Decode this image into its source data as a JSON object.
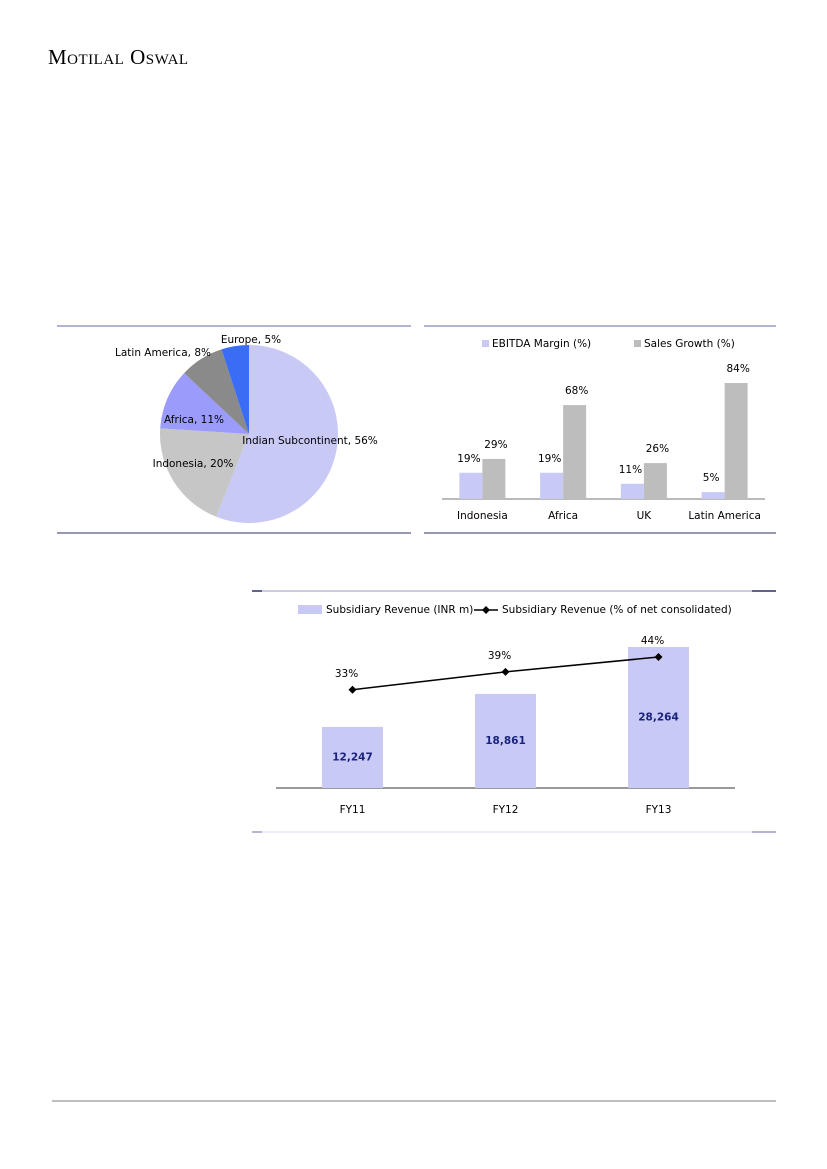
{
  "header": {
    "brand": "Motilal Oswal"
  },
  "chart_data": [
    {
      "type": "pie",
      "categories": [
        "Indian Subcontinent",
        "Indonesia",
        "Africa",
        "Latin America",
        "Europe"
      ],
      "values": [
        56,
        20,
        11,
        8,
        5
      ],
      "value_labels": [
        "56%",
        "20%",
        "11%",
        "8%",
        "5%"
      ],
      "colors": [
        "#c9c9f6",
        "#c6c6c6",
        "#9b9bfb",
        "#8a8a8a",
        "#3b6cf5"
      ]
    },
    {
      "type": "bar",
      "categories": [
        "Indonesia",
        "Africa",
        "UK",
        "Latin America"
      ],
      "legend": "top",
      "series": [
        {
          "name": "EBITDA Margin (%)",
          "color": "#c9c9f6",
          "values": [
            19,
            19,
            11,
            5
          ],
          "value_labels": [
            "19%",
            "19%",
            "11%",
            "5%"
          ]
        },
        {
          "name": "Sales Growth (%)",
          "color": "#bdbdbd",
          "values": [
            29,
            68,
            26,
            84
          ],
          "value_labels": [
            "29%",
            "68%",
            "26%",
            "84%"
          ]
        }
      ]
    },
    {
      "type": "combo",
      "categories": [
        "FY11",
        "FY12",
        "FY13"
      ],
      "legend": "top",
      "series": [
        {
          "name": "Subsidiary Revenue (INR m)",
          "type": "bar",
          "color": "#c9c9f6",
          "values": [
            12247,
            18861,
            28264
          ],
          "value_labels": [
            "12,247",
            "18,861",
            "28,264"
          ]
        },
        {
          "name": "Subsidiary Revenue (% of net consolidated)",
          "type": "line",
          "axis": "y2",
          "color": "#000000",
          "values": [
            33,
            39,
            44
          ],
          "value_labels": [
            "33%",
            "39%",
            "44%"
          ]
        }
      ]
    }
  ]
}
